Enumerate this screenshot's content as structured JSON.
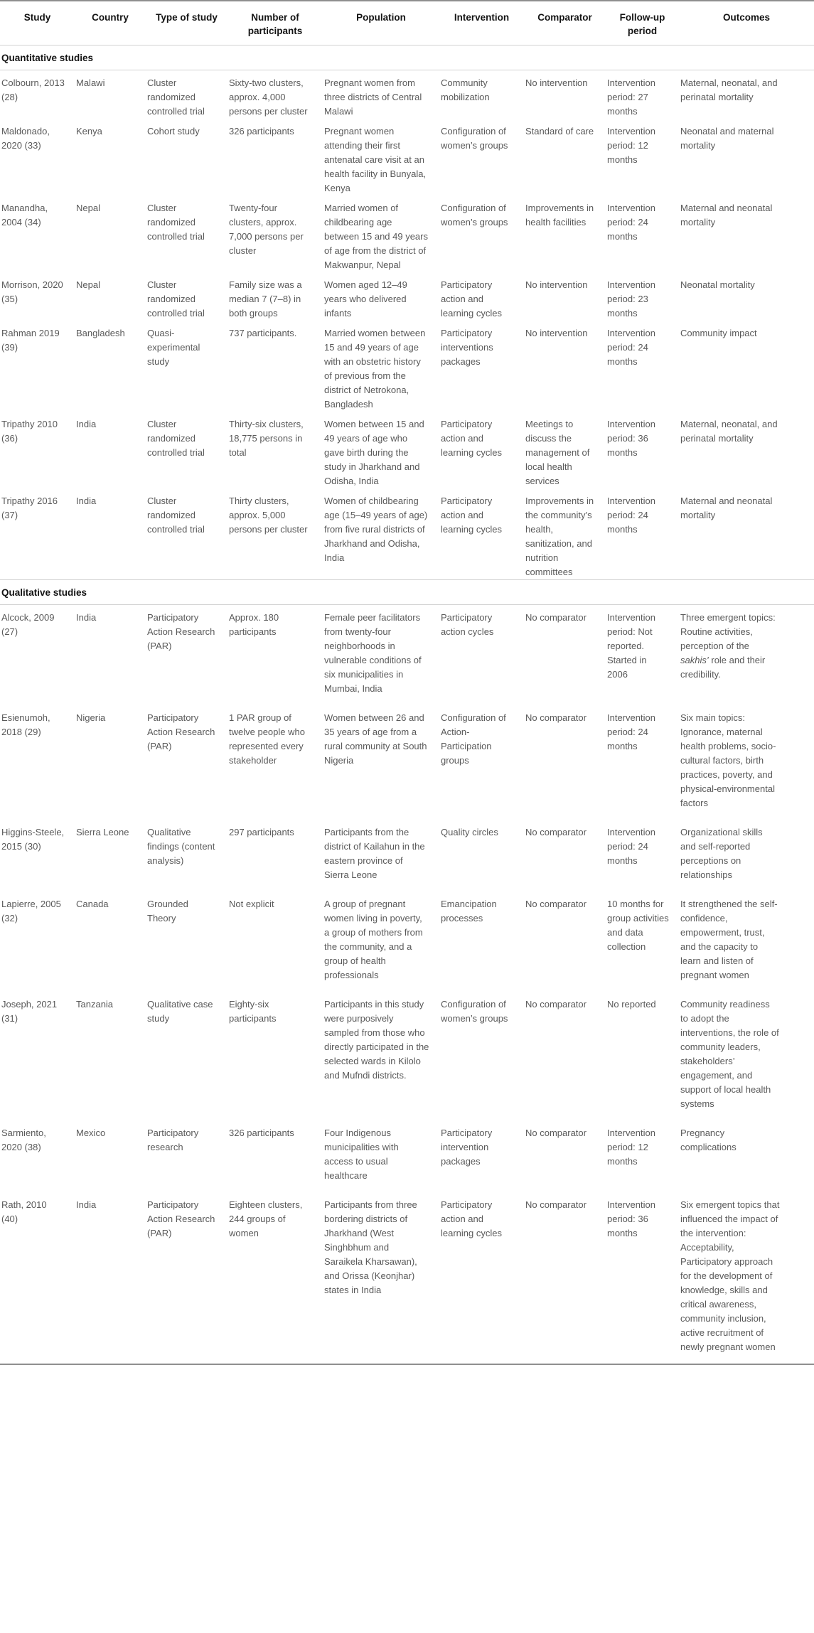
{
  "colors": {
    "body_text": "#595959",
    "heading_text": "#141414",
    "rule_light": "#d2d2d2",
    "rule_dark": "#8f8f8f",
    "page_bg": "#ffffff"
  },
  "table": {
    "columns": [
      "Study",
      "Country",
      "Type of study",
      "Number of participants",
      "Population",
      "Intervention",
      "Comparator",
      "Follow-up period",
      "Outcomes"
    ],
    "sections": [
      {
        "id": "quantitative",
        "title": "Quantitative studies",
        "rows": [
          [
            "Colbourn, 2013 (28)",
            "Malawi",
            "Cluster randomized controlled trial",
            "Sixty-two clusters, approx. 4,000 persons per cluster",
            "Pregnant women from three districts of Central Malawi",
            "Community mobilization",
            "No intervention",
            "Intervention period: 27 months",
            "Maternal, neonatal, and perinatal mortality"
          ],
          [
            "Maldonado, 2020 (33)",
            "Kenya",
            "Cohort study",
            "326 participants",
            "Pregnant women attending their first antenatal care visit at an health facility in Bunyala, Kenya",
            "Configuration of women’s groups",
            "Standard of care",
            "Intervention period: 12 months",
            "Neonatal and maternal mortality"
          ],
          [
            "Manandha, 2004 (34)",
            "Nepal",
            "Cluster randomized controlled trial",
            "Twenty-four clusters, approx. 7,000 persons per cluster",
            "Married women of childbearing age between 15 and 49 years of age from the district of Makwanpur, Nepal",
            "Configuration of women’s groups",
            "Improvements in health facilities",
            "Intervention period: 24 months",
            "Maternal and neonatal mortality"
          ],
          [
            "Morrison, 2020 (35)",
            "Nepal",
            "Cluster randomized controlled trial",
            "Family size was a median 7 (7–8) in both groups",
            "Women aged 12–49 years who delivered infants",
            "Participatory action and learning cycles",
            "No intervention",
            "Intervention period: 23 months",
            "Neonatal mortality"
          ],
          [
            "Rahman 2019 (39)",
            "Bangladesh",
            "Quasi-experimental study",
            "737 participants.",
            "Married women between 15 and 49 years of age with an obstetric history of previous from the district of Netrokona, Bangladesh",
            "Participatory interventions packages",
            "No intervention",
            "Intervention period: 24 months",
            "Community impact"
          ],
          [
            "Tripathy 2010 (36)",
            "India",
            "Cluster randomized controlled trial",
            "Thirty-six clusters, 18,775 persons in total",
            "Women between 15 and 49 years of age who gave birth during the study in Jharkhand and Odisha, India",
            "Participatory action and learning cycles",
            "Meetings to discuss the management of local health services",
            "Intervention period: 36 months",
            "Maternal, neonatal, and perinatal mortality"
          ],
          [
            "Tripathy 2016 (37)",
            "India",
            "Cluster randomized controlled trial",
            "Thirty clusters, approx. 5,000 persons per cluster",
            "Women of childbearing age (15–49 years of age) from five rural districts of Jharkhand and Odisha, India",
            "Participatory action and learning cycles",
            "Improvements in the community’s health, sanitization, and nutrition committees",
            "Intervention period: 24 months",
            "Maternal and neonatal mortality"
          ]
        ]
      },
      {
        "id": "qualitative",
        "title": "Qualitative studies",
        "rows": [
          [
            "Alcock, 2009 (27)",
            "India",
            "Participatory Action Research (PAR)",
            "Approx. 180 participants",
            "Female peer facilitators from twenty-four neighborhoods in vulnerable conditions of six municipalities in Mumbai, India",
            "Participatory action cycles",
            "No comparator",
            "Intervention period: Not reported. Started in 2006",
            "Three emergent topics: Routine activities, perception of the *sakhis’* role and their credibility."
          ],
          [
            "Esienumoh, 2018 (29)",
            "Nigeria",
            "Participatory Action Research (PAR)",
            "1 PAR group of twelve people who represented every stakeholder",
            "Women between 26 and 35 years of age from a rural community at South Nigeria",
            "Configuration of Action-Participation groups",
            "No comparator",
            "Intervention period: 24 months",
            "Six main topics: Ignorance, maternal health problems, socio-cultural factors, birth practices, poverty, and physical-environmental factors"
          ],
          [
            "Higgins-Steele, 2015 (30)",
            "Sierra Leone",
            "Qualitative findings (content analysis)",
            "297 participants",
            "Participants from the district of Kailahun in the eastern province of Sierra Leone",
            "Quality circles",
            "No comparator",
            "Intervention period: 24 months",
            "Organizational skills and self-reported perceptions on relationships"
          ],
          [
            "Lapierre, 2005 (32)",
            "Canada",
            "Grounded Theory",
            "Not explicit",
            "A group of pregnant women living in poverty, a group of mothers from the community, and a group of health professionals",
            "Emancipation processes",
            "No comparator",
            "10 months for group activities and data collection",
            "It strengthened the self-confidence, empowerment, trust, and the capacity to learn and listen of pregnant women"
          ],
          [
            "Joseph, 2021 (31)",
            "Tanzania",
            "Qualitative case study",
            "Eighty-six participants",
            "Participants in this study were purposively sampled from those who directly participated in the selected wards in Kilolo and Mufndi districts.",
            "Configuration of women’s groups",
            "No comparator",
            "No reported",
            "Community readiness to adopt the interventions, the role of community leaders, stakeholders’ engagement, and support of local health systems"
          ],
          [
            "Sarmiento, 2020 (38)",
            "Mexico",
            "Participatory research",
            "326 participants",
            "Four Indigenous municipalities with access to usual healthcare",
            "Participatory intervention packages",
            "No comparator",
            "Intervention period: 12 months",
            "Pregnancy complications"
          ],
          [
            "Rath, 2010 (40)",
            "India",
            "Participatory Action Research (PAR)",
            "Eighteen clusters, 244 groups of women",
            "Participants from three bordering districts of Jharkhand (West Singhbhum and Saraikela Kharsawan), and Orissa (Keonjhar) states in India",
            "Participatory action and learning cycles",
            "No comparator",
            "Intervention period: 36 months",
            "Six emergent topics that influenced the impact of the intervention: Acceptability, Participatory approach for the development of knowledge, skills and critical awareness, community inclusion, active recruitment of newly pregnant women"
          ]
        ]
      }
    ]
  }
}
